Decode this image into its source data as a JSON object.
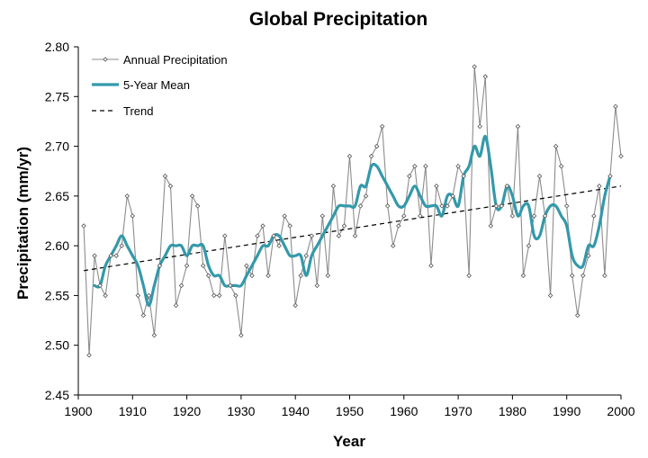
{
  "chart_data": {
    "type": "line",
    "title": "Global Precipitation",
    "xlabel": "Year",
    "ylabel": "Precipitation (mm/yr)",
    "xlim": [
      1900,
      2000
    ],
    "ylim": [
      2.45,
      2.8
    ],
    "x_ticks": [
      1900,
      1910,
      1920,
      1930,
      1940,
      1950,
      1960,
      1970,
      1980,
      1990,
      2000
    ],
    "y_ticks": [
      2.45,
      2.5,
      2.55,
      2.6,
      2.65,
      2.7,
      2.75,
      2.8
    ],
    "x_tick_labels": [
      "1900",
      "1910",
      "1920",
      "1930",
      "1940",
      "1950",
      "1960",
      "1970",
      "1980",
      "1990",
      "2000"
    ],
    "y_tick_labels": [
      "2.45",
      "2.50",
      "2.55",
      "2.60",
      "2.65",
      "2.70",
      "2.75",
      "2.80"
    ],
    "grid": false,
    "legend_position": "top-left",
    "series": [
      {
        "name": "Annual Precipitation",
        "style": "thin-line-diamond-markers",
        "color": "#8c8c8c",
        "x": [
          1901,
          1902,
          1903,
          1904,
          1905,
          1906,
          1907,
          1908,
          1909,
          1910,
          1911,
          1912,
          1913,
          1914,
          1915,
          1916,
          1917,
          1918,
          1919,
          1920,
          1921,
          1922,
          1923,
          1924,
          1925,
          1926,
          1927,
          1928,
          1929,
          1930,
          1931,
          1932,
          1933,
          1934,
          1935,
          1936,
          1937,
          1938,
          1939,
          1940,
          1941,
          1942,
          1943,
          1944,
          1945,
          1946,
          1947,
          1948,
          1949,
          1950,
          1951,
          1952,
          1953,
          1954,
          1955,
          1956,
          1957,
          1958,
          1959,
          1960,
          1961,
          1962,
          1963,
          1964,
          1965,
          1966,
          1967,
          1968,
          1969,
          1970,
          1971,
          1972,
          1973,
          1974,
          1975,
          1976,
          1977,
          1978,
          1979,
          1980,
          1981,
          1982,
          1983,
          1984,
          1985,
          1986,
          1987,
          1988,
          1989,
          1990,
          1991,
          1992,
          1993,
          1994,
          1995,
          1996,
          1997,
          1998,
          1999,
          2000
        ],
        "values": [
          2.62,
          2.49,
          2.59,
          2.56,
          2.55,
          2.59,
          2.59,
          2.6,
          2.65,
          2.63,
          2.55,
          2.53,
          2.55,
          2.51,
          2.58,
          2.67,
          2.66,
          2.54,
          2.56,
          2.58,
          2.65,
          2.64,
          2.58,
          2.57,
          2.55,
          2.55,
          2.61,
          2.56,
          2.55,
          2.51,
          2.58,
          2.57,
          2.61,
          2.62,
          2.57,
          2.61,
          2.6,
          2.63,
          2.62,
          2.54,
          2.57,
          2.59,
          2.61,
          2.56,
          2.63,
          2.57,
          2.66,
          2.61,
          2.62,
          2.69,
          2.61,
          2.64,
          2.65,
          2.69,
          2.7,
          2.72,
          2.64,
          2.6,
          2.62,
          2.63,
          2.67,
          2.68,
          2.63,
          2.68,
          2.58,
          2.66,
          2.64,
          2.64,
          2.65,
          2.68,
          2.67,
          2.57,
          2.78,
          2.72,
          2.77,
          2.62,
          2.64,
          2.64,
          2.66,
          2.63,
          2.72,
          2.57,
          2.6,
          2.63,
          2.67,
          2.63,
          2.55,
          2.7,
          2.68,
          2.64,
          2.57,
          2.53,
          2.57,
          2.59,
          2.63,
          2.66,
          2.57,
          2.67,
          2.74,
          2.69
        ]
      },
      {
        "name": "5-Year Mean",
        "style": "thick-smooth-line",
        "color": "#3399aa",
        "x": [
          1903,
          1904,
          1905,
          1906,
          1907,
          1908,
          1909,
          1910,
          1911,
          1912,
          1913,
          1914,
          1915,
          1916,
          1917,
          1918,
          1919,
          1920,
          1921,
          1922,
          1923,
          1924,
          1925,
          1926,
          1927,
          1928,
          1929,
          1930,
          1931,
          1932,
          1933,
          1934,
          1935,
          1936,
          1937,
          1938,
          1939,
          1940,
          1941,
          1942,
          1943,
          1944,
          1945,
          1946,
          1947,
          1948,
          1949,
          1950,
          1951,
          1952,
          1953,
          1954,
          1955,
          1956,
          1957,
          1958,
          1959,
          1960,
          1961,
          1962,
          1963,
          1964,
          1965,
          1966,
          1967,
          1968,
          1969,
          1970,
          1971,
          1972,
          1973,
          1974,
          1975,
          1976,
          1977,
          1978,
          1979,
          1980,
          1981,
          1982,
          1983,
          1984,
          1985,
          1986,
          1987,
          1988,
          1989,
          1990,
          1991,
          1992,
          1993,
          1994,
          1995,
          1996,
          1997,
          1998
        ],
        "values": [
          2.56,
          2.56,
          2.58,
          2.59,
          2.6,
          2.61,
          2.6,
          2.59,
          2.58,
          2.56,
          2.54,
          2.56,
          2.58,
          2.59,
          2.6,
          2.6,
          2.6,
          2.59,
          2.6,
          2.6,
          2.6,
          2.58,
          2.57,
          2.57,
          2.56,
          2.56,
          2.56,
          2.56,
          2.57,
          2.58,
          2.59,
          2.6,
          2.6,
          2.61,
          2.61,
          2.6,
          2.59,
          2.59,
          2.59,
          2.57,
          2.59,
          2.6,
          2.61,
          2.62,
          2.63,
          2.64,
          2.64,
          2.64,
          2.64,
          2.66,
          2.66,
          2.68,
          2.68,
          2.67,
          2.66,
          2.65,
          2.64,
          2.64,
          2.65,
          2.66,
          2.65,
          2.64,
          2.64,
          2.64,
          2.63,
          2.65,
          2.65,
          2.64,
          2.67,
          2.68,
          2.7,
          2.69,
          2.71,
          2.68,
          2.64,
          2.64,
          2.66,
          2.65,
          2.63,
          2.64,
          2.64,
          2.61,
          2.61,
          2.63,
          2.64,
          2.64,
          2.63,
          2.62,
          2.59,
          2.58,
          2.58,
          2.6,
          2.6,
          2.62,
          2.65,
          2.67
        ]
      },
      {
        "name": "Trend",
        "style": "dashed-line",
        "color": "#000000",
        "x": [
          1901,
          2000
        ],
        "values": [
          2.575,
          2.66
        ]
      }
    ]
  }
}
